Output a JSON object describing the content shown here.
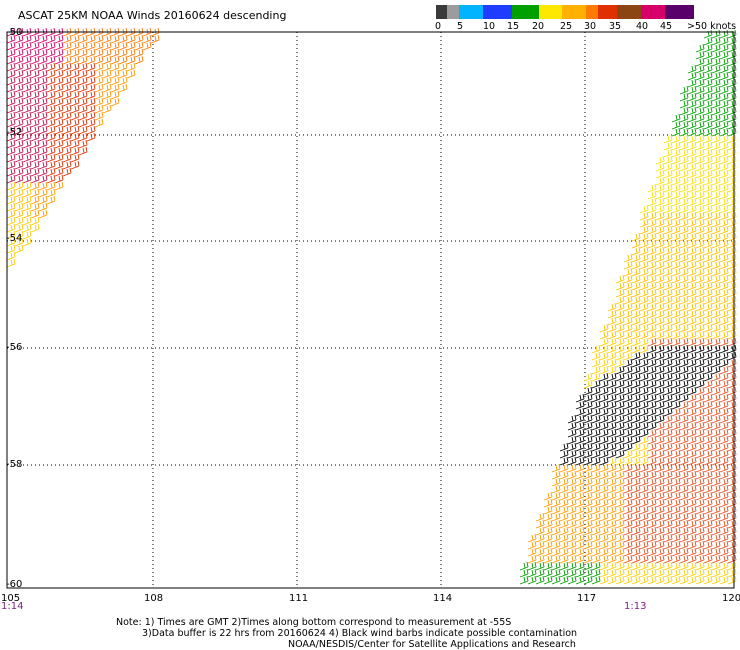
{
  "title": "ASCAT 25KM NOAA Winds 20160624 descending",
  "colorbar": {
    "segments": [
      "#3a3a3a",
      "#9c9c9c",
      "#00b4ff",
      "#1f3cff",
      "#00a000",
      "#ffe800",
      "#ffb000",
      "#ff7a00",
      "#e03000",
      "#8b4513",
      "#d6006b",
      "#5a006b"
    ],
    "labels": [
      "0",
      "5",
      "10",
      "15",
      "20",
      "25",
      "30",
      "35",
      "40",
      "45"
    ],
    "unit_label": ">50 knots"
  },
  "lat_labels": [
    "-50",
    "-52",
    "-54",
    "-56",
    "-58",
    "-60"
  ],
  "lon_labels": [
    "105",
    "108",
    "111",
    "114",
    "117",
    "120"
  ],
  "time_labels": [
    "1:14",
    "1:13"
  ],
  "notes": [
    "Note: 1) Times are GMT 2)Times along bottom correspond to measurement at -55S",
    "3)Data buffer is 22 hrs from 20160624 4) Black wind barbs indicate possible contamination",
    "NOAA/NESDIS/Center for Satellite Applications and Research"
  ]
}
